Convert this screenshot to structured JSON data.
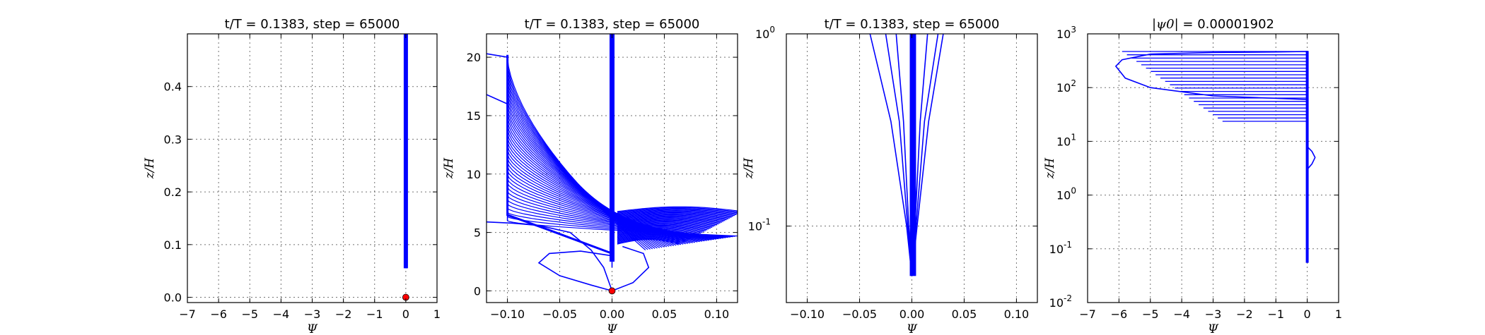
{
  "chart_data": [
    {
      "type": "line",
      "title": "t/T = 0.1383, step = 65000",
      "xlabel": "Ψ",
      "ylabel": "z/H",
      "xlim": [
        -7,
        1
      ],
      "ylim": [
        -0.01,
        0.5
      ],
      "xticks": [
        -7,
        -6,
        -5,
        -4,
        -3,
        -2,
        -1,
        0,
        1
      ],
      "xtick_labels": [
        "−7",
        "−6",
        "−5",
        "−4",
        "−3",
        "−2",
        "−1",
        "0",
        "1"
      ],
      "yticks": [
        0.0,
        0.1,
        0.2,
        0.3,
        0.4
      ],
      "ytick_labels": [
        "0.0",
        "0.1",
        "0.2",
        "0.3",
        "0.4"
      ],
      "grid": true,
      "series_color": "#0000ff",
      "series": [
        {
          "x": [
            0.0,
            0.0
          ],
          "y": [
            0.055,
            0.5
          ]
        },
        {
          "x": [
            0.02,
            0.02
          ],
          "y": [
            0.055,
            0.5
          ]
        }
      ],
      "marker": {
        "x": 0.0,
        "y": 0.0,
        "color": "#ff0000"
      }
    },
    {
      "type": "line",
      "title": "t/T = 0.1383, step = 65000",
      "xlabel": "Ψ",
      "ylabel": "z/H",
      "xlim": [
        -0.12,
        0.12
      ],
      "ylim": [
        -1,
        22
      ],
      "xticks": [
        -0.1,
        -0.05,
        0.0,
        0.05,
        0.1
      ],
      "xtick_labels": [
        "−0.10",
        "−0.05",
        "0.00",
        "0.05",
        "0.10"
      ],
      "yticks": [
        0,
        5,
        10,
        15,
        20
      ],
      "ytick_labels": [
        "0",
        "5",
        "10",
        "15",
        "20"
      ],
      "grid": true,
      "series_color": "#0000ff",
      "series": [
        {
          "x": [
            0.0,
            -0.008,
            -0.02,
            -0.04,
            -0.07,
            -0.095,
            -0.12
          ],
          "y": [
            0.0,
            2.0,
            3.5,
            5.0,
            5.6,
            5.8,
            5.9
          ]
        },
        {
          "x": [
            0.0,
            -0.02,
            -0.05,
            -0.07,
            -0.06,
            -0.03,
            0.0
          ],
          "y": [
            0.0,
            0.5,
            1.3,
            2.4,
            3.2,
            3.4,
            3.0
          ]
        },
        {
          "x": [
            0.0,
            0.02,
            0.035,
            0.03,
            0.01
          ],
          "y": [
            0.0,
            0.7,
            2.0,
            3.2,
            3.8
          ]
        },
        {
          "x": [
            0.0,
            0.0
          ],
          "y": [
            2.0,
            22.0
          ]
        },
        {
          "x": [
            -0.1,
            -0.1
          ],
          "y": [
            6.0,
            20.0
          ]
        },
        {
          "x": [
            -0.12,
            -0.1
          ],
          "y": [
            20.3,
            20.0
          ]
        },
        {
          "x": [
            -0.12,
            -0.1
          ],
          "y": [
            16.8,
            16.0
          ]
        }
      ],
      "fan_curves": 40,
      "marker": {
        "x": 0.0,
        "y": 0.0,
        "color": "#ff0000"
      }
    },
    {
      "type": "line",
      "title": "t/T = 0.1383, step = 65000",
      "xlabel": "Ψ",
      "ylabel": "z/H",
      "xlim": [
        -0.12,
        0.12
      ],
      "ylim": [
        0.04,
        1.0
      ],
      "yscale": "log",
      "xticks": [
        -0.1,
        -0.05,
        0.0,
        0.05,
        0.1
      ],
      "xtick_labels": [
        "−0.10",
        "−0.05",
        "0.00",
        "0.05",
        "0.10"
      ],
      "yticks": [
        0.1,
        1.0
      ],
      "ytick_base": "10",
      "ytick_exps": [
        "-1",
        "0"
      ],
      "grid": true,
      "series_color": "#0000ff",
      "series": [
        {
          "x": [
            0.0,
            -0.005,
            -0.02,
            -0.04
          ],
          "y": [
            0.055,
            0.1,
            0.35,
            1.0
          ]
        },
        {
          "x": [
            0.0,
            -0.004,
            -0.012,
            -0.025
          ],
          "y": [
            0.055,
            0.1,
            0.35,
            1.0
          ]
        },
        {
          "x": [
            0.0,
            -0.003,
            -0.008,
            -0.015
          ],
          "y": [
            0.055,
            0.1,
            0.35,
            1.0
          ]
        },
        {
          "x": [
            0.0,
            0.003,
            0.008,
            0.015
          ],
          "y": [
            0.055,
            0.1,
            0.35,
            1.0
          ]
        },
        {
          "x": [
            0.0,
            0.004,
            0.012,
            0.025
          ],
          "y": [
            0.055,
            0.1,
            0.35,
            1.0
          ]
        },
        {
          "x": [
            0.0,
            0.005,
            0.016,
            0.03
          ],
          "y": [
            0.055,
            0.1,
            0.35,
            1.0
          ]
        }
      ],
      "band": {
        "x": [
          -0.002,
          0.004
        ],
        "y": [
          0.055,
          1.0
        ]
      }
    },
    {
      "type": "line",
      "title_math": "|ψ0|",
      "title_value": "= 0.00001902",
      "xlabel": "Ψ",
      "ylabel": "z/H",
      "xlim": [
        -7,
        1
      ],
      "ylim": [
        0.01,
        1000
      ],
      "yscale": "log",
      "xticks": [
        -7,
        -6,
        -5,
        -4,
        -3,
        -2,
        -1,
        0,
        1
      ],
      "xtick_labels": [
        "−7",
        "−6",
        "−5",
        "−4",
        "−3",
        "−2",
        "−1",
        "0",
        "1"
      ],
      "yticks": [
        0.01,
        0.1,
        1,
        10,
        100,
        1000
      ],
      "ytick_base": "10",
      "ytick_exps": [
        "-2",
        "-1",
        "0",
        "1",
        "2",
        "3"
      ],
      "grid": true,
      "series_color": "#0000ff",
      "series": [
        {
          "x": [
            0.0,
            0.0
          ],
          "y": [
            0.055,
            480
          ]
        },
        {
          "x": [
            0.0,
            0.15,
            0.25,
            0.15,
            0.0
          ],
          "y": [
            3.0,
            3.8,
            5.0,
            6.5,
            8.0
          ]
        },
        {
          "x": [
            0.0,
            -1.0,
            -3.0,
            -5.0,
            -5.9,
            -6.1,
            -5.8,
            -5.0,
            -3.0,
            0.0
          ],
          "y": [
            470,
            460,
            450,
            420,
            330,
            250,
            150,
            100,
            70,
            60
          ]
        }
      ],
      "steps": 22
    }
  ]
}
